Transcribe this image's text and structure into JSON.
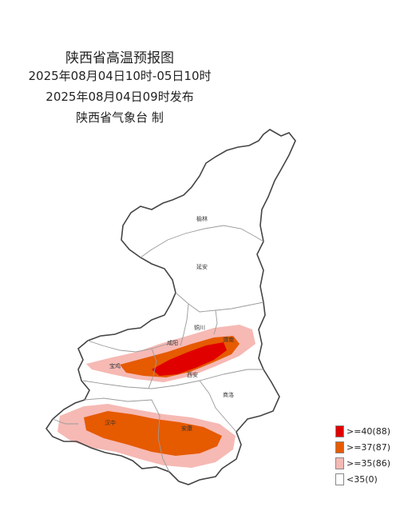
{
  "title": {
    "line1": "陕西省高温预报图",
    "line2": "2025年08月04日10时-05日10时",
    "line3": "2025年08月04日09时发布",
    "line4": "陕西省气象台 制"
  },
  "cities": {
    "yulin": "榆林",
    "yanan": "延安",
    "tongchuan": "铜川",
    "xianyang": "咸阳",
    "weinan": "渭南",
    "baoji": "宝鸡",
    "xian": "西安",
    "shangluo": "商洛",
    "hanzhong": "汉中",
    "ankang": "安康"
  },
  "legend": [
    {
      "label": ">=40(88)",
      "color": "#e00000"
    },
    {
      "label": ">=37(87)",
      "color": "#e65a00"
    },
    {
      "label": ">=35(86)",
      "color": "#f6b9b4"
    },
    {
      "label": "<35(0)",
      "color": "#ffffff"
    }
  ],
  "colors": {
    "outline": "#444444",
    "boundary": "#9a9a9a"
  }
}
